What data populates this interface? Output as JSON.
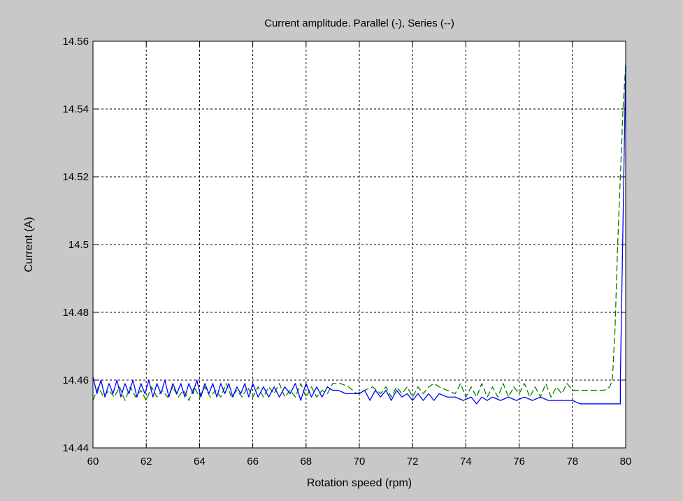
{
  "chart_data": {
    "type": "line",
    "title": "Current amplitude. Parallel (-), Series (--)",
    "xlabel": "Rotation speed (rpm)",
    "ylabel": "Current (A)",
    "xlim": [
      60,
      80
    ],
    "ylim": [
      14.44,
      14.56
    ],
    "xticks": [
      60,
      62,
      64,
      66,
      68,
      70,
      72,
      74,
      76,
      78,
      80
    ],
    "yticks": [
      14.44,
      14.46,
      14.48,
      14.5,
      14.52,
      14.54,
      14.56
    ],
    "xtick_labels": [
      "60",
      "62",
      "64",
      "66",
      "68",
      "70",
      "72",
      "74",
      "76",
      "78",
      "80"
    ],
    "ytick_labels": [
      "14.44",
      "14.46",
      "14.48",
      "14.5",
      "14.52",
      "14.54",
      "14.56"
    ],
    "grid": true,
    "background": "#c8c8c8",
    "plot_background": "#ffffff",
    "series": [
      {
        "style": "dashed",
        "color": "#008000",
        "x": [
          60.0,
          60.2,
          60.4,
          60.6,
          60.8,
          61.0,
          61.2,
          61.4,
          61.6,
          61.8,
          62.0,
          62.2,
          62.4,
          62.6,
          62.8,
          63.0,
          63.2,
          63.4,
          63.6,
          63.8,
          64.0,
          64.2,
          64.4,
          64.6,
          64.8,
          65.0,
          65.2,
          65.4,
          65.6,
          65.8,
          66.0,
          66.2,
          66.4,
          66.6,
          66.8,
          67.0,
          67.2,
          67.4,
          67.6,
          67.8,
          68.0,
          68.2,
          68.4,
          68.6,
          68.8,
          69.0,
          69.3,
          69.6,
          69.9,
          70.2,
          70.5,
          70.8,
          71.0,
          71.2,
          71.4,
          71.6,
          71.8,
          72.0,
          72.2,
          72.4,
          72.6,
          72.8,
          73.0,
          73.3,
          73.6,
          73.8,
          74.0,
          74.2,
          74.4,
          74.6,
          74.8,
          75.0,
          75.2,
          75.4,
          75.6,
          75.8,
          76.0,
          76.2,
          76.4,
          76.6,
          76.8,
          77.0,
          77.2,
          77.4,
          77.6,
          77.8,
          78.0,
          78.3,
          78.6,
          78.9,
          79.2,
          79.4,
          79.5,
          79.6,
          79.7,
          79.8,
          79.9,
          80.0
        ],
        "y": [
          14.454,
          14.458,
          14.455,
          14.457,
          14.455,
          14.458,
          14.454,
          14.458,
          14.455,
          14.457,
          14.454,
          14.458,
          14.455,
          14.457,
          14.455,
          14.458,
          14.455,
          14.457,
          14.454,
          14.458,
          14.455,
          14.458,
          14.455,
          14.457,
          14.455,
          14.459,
          14.455,
          14.457,
          14.455,
          14.458,
          14.455,
          14.458,
          14.455,
          14.458,
          14.456,
          14.459,
          14.455,
          14.457,
          14.455,
          14.459,
          14.455,
          14.458,
          14.455,
          14.457,
          14.456,
          14.459,
          14.459,
          14.458,
          14.456,
          14.457,
          14.458,
          14.456,
          14.458,
          14.455,
          14.458,
          14.456,
          14.458,
          14.455,
          14.458,
          14.456,
          14.458,
          14.459,
          14.458,
          14.457,
          14.456,
          14.459,
          14.455,
          14.458,
          14.455,
          14.459,
          14.455,
          14.458,
          14.455,
          14.459,
          14.455,
          14.458,
          14.456,
          14.459,
          14.455,
          14.458,
          14.455,
          14.459,
          14.455,
          14.458,
          14.456,
          14.459,
          14.457,
          14.457,
          14.457,
          14.457,
          14.457,
          14.458,
          14.46,
          14.475,
          14.5,
          14.52,
          14.54,
          14.553
        ]
      },
      {
        "style": "solid",
        "color": "#0000ff",
        "x": [
          60.0,
          60.15,
          60.3,
          60.45,
          60.6,
          60.75,
          60.9,
          61.05,
          61.2,
          61.35,
          61.5,
          61.65,
          61.8,
          61.95,
          62.1,
          62.25,
          62.4,
          62.55,
          62.7,
          62.85,
          63.0,
          63.15,
          63.3,
          63.45,
          63.6,
          63.75,
          63.9,
          64.05,
          64.2,
          64.35,
          64.5,
          64.65,
          64.8,
          64.95,
          65.1,
          65.25,
          65.4,
          65.55,
          65.7,
          65.85,
          66.0,
          66.2,
          66.4,
          66.6,
          66.8,
          67.0,
          67.2,
          67.4,
          67.6,
          67.8,
          68.0,
          68.2,
          68.4,
          68.6,
          68.8,
          69.0,
          69.2,
          69.5,
          69.8,
          70.0,
          70.2,
          70.4,
          70.6,
          70.8,
          71.0,
          71.2,
          71.4,
          71.6,
          71.8,
          72.0,
          72.2,
          72.4,
          72.6,
          72.8,
          73.0,
          73.3,
          73.6,
          73.9,
          74.2,
          74.4,
          74.6,
          74.8,
          75.0,
          75.3,
          75.6,
          75.9,
          76.2,
          76.5,
          76.8,
          77.1,
          77.4,
          77.7,
          78.0,
          78.3,
          78.6,
          78.9,
          79.2,
          79.5,
          79.8,
          79.8,
          80.0
        ],
        "y": [
          14.461,
          14.456,
          14.46,
          14.455,
          14.459,
          14.456,
          14.46,
          14.455,
          14.459,
          14.456,
          14.46,
          14.455,
          14.459,
          14.456,
          14.46,
          14.455,
          14.459,
          14.456,
          14.46,
          14.455,
          14.459,
          14.456,
          14.459,
          14.455,
          14.459,
          14.456,
          14.46,
          14.455,
          14.459,
          14.456,
          14.459,
          14.455,
          14.459,
          14.456,
          14.459,
          14.455,
          14.458,
          14.456,
          14.459,
          14.455,
          14.459,
          14.455,
          14.458,
          14.455,
          14.458,
          14.455,
          14.458,
          14.456,
          14.459,
          14.454,
          14.459,
          14.455,
          14.458,
          14.455,
          14.458,
          14.457,
          14.457,
          14.456,
          14.456,
          14.456,
          14.457,
          14.454,
          14.457,
          14.455,
          14.457,
          14.454,
          14.457,
          14.455,
          14.456,
          14.454,
          14.456,
          14.454,
          14.456,
          14.454,
          14.456,
          14.455,
          14.455,
          14.454,
          14.455,
          14.453,
          14.455,
          14.454,
          14.455,
          14.454,
          14.455,
          14.454,
          14.455,
          14.454,
          14.455,
          14.454,
          14.454,
          14.454,
          14.454,
          14.453,
          14.453,
          14.453,
          14.453,
          14.453,
          14.453,
          14.46,
          14.553
        ]
      }
    ]
  }
}
